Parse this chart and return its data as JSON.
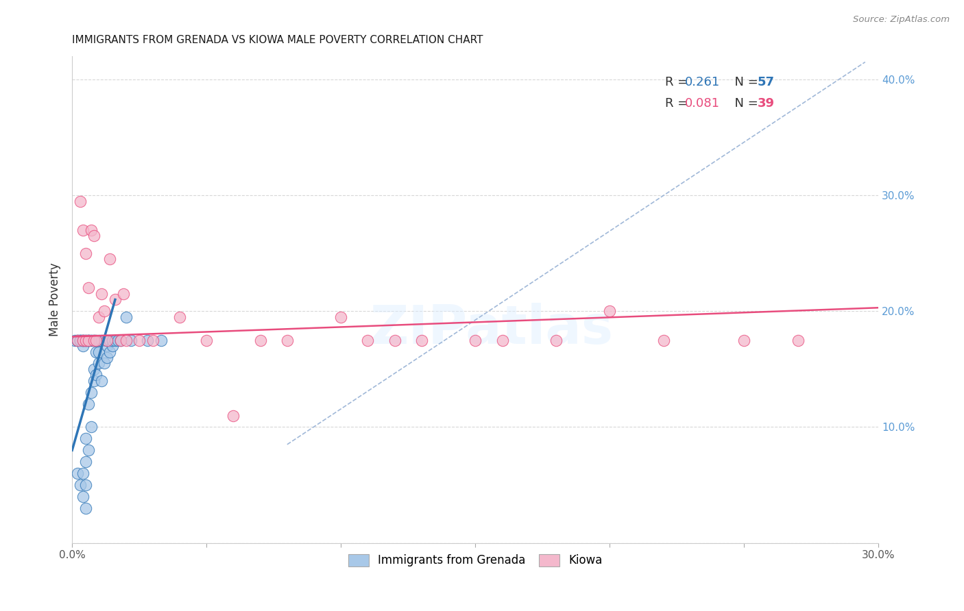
{
  "title": "IMMIGRANTS FROM GRENADA VS KIOWA MALE POVERTY CORRELATION CHART",
  "source": "Source: ZipAtlas.com",
  "ylabel": "Male Poverty",
  "xlim": [
    0.0,
    0.3
  ],
  "ylim": [
    0.0,
    0.42
  ],
  "right_ytick_color": "#5b9bd5",
  "legend_r1": "R = 0.261",
  "legend_n1": "N = 57",
  "legend_r2": "R = 0.081",
  "legend_n2": "N = 39",
  "series1_color": "#a8c8e8",
  "series2_color": "#f4b8cc",
  "line1_color": "#2e75b6",
  "line2_color": "#e84c7d",
  "dashed_line_color": "#a0b8d8",
  "watermark": "ZIPatlas",
  "blue_scatter_x": [
    0.001,
    0.002,
    0.002,
    0.002,
    0.003,
    0.003,
    0.003,
    0.003,
    0.004,
    0.004,
    0.004,
    0.004,
    0.004,
    0.004,
    0.005,
    0.005,
    0.005,
    0.005,
    0.005,
    0.005,
    0.006,
    0.006,
    0.006,
    0.006,
    0.006,
    0.007,
    0.007,
    0.007,
    0.007,
    0.008,
    0.008,
    0.008,
    0.008,
    0.009,
    0.009,
    0.009,
    0.01,
    0.01,
    0.01,
    0.011,
    0.011,
    0.012,
    0.012,
    0.013,
    0.013,
    0.013,
    0.014,
    0.014,
    0.015,
    0.015,
    0.016,
    0.017,
    0.018,
    0.02,
    0.022,
    0.028,
    0.033
  ],
  "blue_scatter_y": [
    0.175,
    0.06,
    0.175,
    0.175,
    0.05,
    0.175,
    0.175,
    0.175,
    0.04,
    0.06,
    0.175,
    0.17,
    0.175,
    0.175,
    0.03,
    0.05,
    0.07,
    0.09,
    0.175,
    0.175,
    0.08,
    0.12,
    0.175,
    0.175,
    0.175,
    0.1,
    0.13,
    0.175,
    0.175,
    0.14,
    0.15,
    0.175,
    0.175,
    0.145,
    0.165,
    0.175,
    0.155,
    0.165,
    0.175,
    0.14,
    0.175,
    0.155,
    0.175,
    0.16,
    0.17,
    0.175,
    0.165,
    0.175,
    0.17,
    0.175,
    0.175,
    0.175,
    0.175,
    0.195,
    0.175,
    0.175,
    0.175
  ],
  "pink_scatter_x": [
    0.002,
    0.003,
    0.004,
    0.004,
    0.005,
    0.005,
    0.006,
    0.006,
    0.007,
    0.008,
    0.008,
    0.009,
    0.01,
    0.011,
    0.012,
    0.013,
    0.014,
    0.016,
    0.018,
    0.019,
    0.02,
    0.025,
    0.03,
    0.04,
    0.05,
    0.06,
    0.07,
    0.08,
    0.1,
    0.11,
    0.12,
    0.13,
    0.15,
    0.16,
    0.18,
    0.2,
    0.22,
    0.25,
    0.27
  ],
  "pink_scatter_y": [
    0.175,
    0.295,
    0.27,
    0.175,
    0.25,
    0.175,
    0.22,
    0.175,
    0.27,
    0.175,
    0.265,
    0.175,
    0.195,
    0.215,
    0.2,
    0.175,
    0.245,
    0.21,
    0.175,
    0.215,
    0.175,
    0.175,
    0.175,
    0.195,
    0.175,
    0.11,
    0.175,
    0.175,
    0.195,
    0.175,
    0.175,
    0.175,
    0.175,
    0.175,
    0.175,
    0.2,
    0.175,
    0.175,
    0.175
  ],
  "blue_line_x0": 0.0,
  "blue_line_y0": 0.08,
  "blue_line_x1": 0.016,
  "blue_line_y1": 0.21,
  "pink_line_x0": 0.0,
  "pink_line_y0": 0.178,
  "pink_line_x1": 0.3,
  "pink_line_y1": 0.203,
  "dashed_line_x0": 0.08,
  "dashed_line_y0": 0.085,
  "dashed_line_x1": 0.295,
  "dashed_line_y1": 0.415
}
